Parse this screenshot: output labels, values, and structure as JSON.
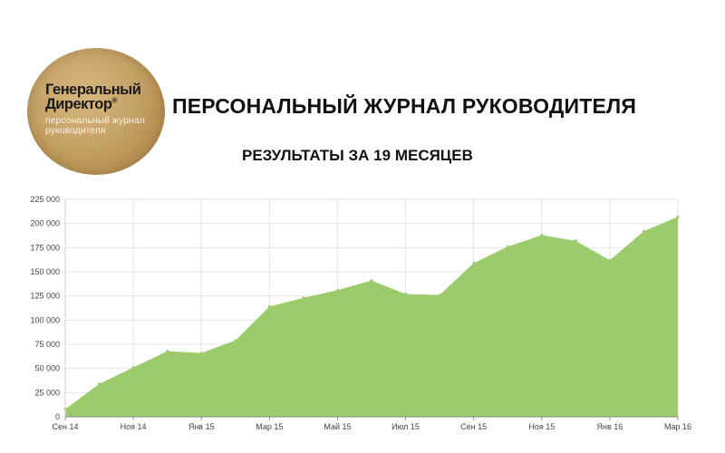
{
  "logo": {
    "line1": "Генеральный",
    "line2": "Директор",
    "mark": "®",
    "line3": "персональный журнал",
    "line4": "руководителя"
  },
  "header": {
    "title": "ПЕРСОНАЛЬНЫЙ ЖУРНАЛ РУКОВОДИТЕЛЯ",
    "subtitle": "РЕЗУЛЬТАТЫ ЗА 19 МЕСЯЦЕВ"
  },
  "chart_data": {
    "type": "area",
    "title": "РЕЗУЛЬТАТЫ ЗА 19 МЕСЯЦЕВ",
    "xlabel": "",
    "ylabel": "",
    "x_tick_labels": [
      "Сен 14",
      "Ноя 14",
      "Янв 15",
      "Мар 15",
      "Май 15",
      "Июл 15",
      "Сен 15",
      "Ноя 15",
      "Янв 16",
      "Мар 16"
    ],
    "y_tick_labels": [
      "0",
      "25 000",
      "50 000",
      "75 000",
      "100 000",
      "125 000",
      "150 000",
      "175 000",
      "200 000",
      "225 000"
    ],
    "ylim": [
      0,
      225000
    ],
    "grid": true,
    "fill_color": "#9ccb6b",
    "values": [
      8000,
      34000,
      51000,
      68000,
      66000,
      79000,
      114000,
      123000,
      131000,
      141000,
      127000,
      126000,
      159000,
      176000,
      188000,
      182000,
      162000,
      192000,
      207000
    ]
  }
}
